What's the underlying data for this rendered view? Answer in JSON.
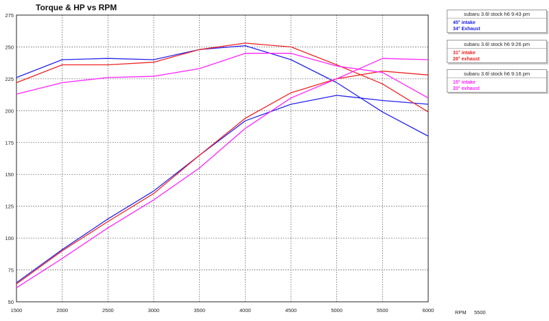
{
  "chart_data": {
    "type": "line",
    "title": "Torque & HP vs RPM",
    "xlabel": "",
    "ylabel": "",
    "x": [
      1500,
      2000,
      2500,
      3000,
      3500,
      4000,
      4500,
      5000,
      5500,
      6000
    ],
    "xlim": [
      1500,
      6000
    ],
    "ylim": [
      50,
      275
    ],
    "xticks": [
      1500,
      2000,
      2500,
      3000,
      3500,
      4000,
      4500,
      5000,
      5500,
      6000
    ],
    "yticks": [
      50,
      75,
      100,
      125,
      150,
      175,
      200,
      225,
      250,
      275
    ],
    "grid": true,
    "grid_style": "dotted",
    "series": [
      {
        "run": 0,
        "measure": "torque",
        "color": "#2222ee",
        "values": [
          226,
          240,
          241,
          240,
          248,
          251,
          240,
          222,
          199,
          180
        ]
      },
      {
        "run": 0,
        "measure": "hp",
        "color": "#2222ee",
        "values": [
          65,
          91,
          115,
          137,
          165,
          192,
          205,
          212,
          208,
          205
        ]
      },
      {
        "run": 1,
        "measure": "torque",
        "color": "#ee2222",
        "values": [
          222,
          236,
          236,
          238,
          248,
          253,
          250,
          236,
          221,
          199
        ]
      },
      {
        "run": 1,
        "measure": "hp",
        "color": "#ee2222",
        "values": [
          64,
          90,
          113,
          135,
          165,
          194,
          214,
          225,
          231,
          228
        ]
      },
      {
        "run": 2,
        "measure": "torque",
        "color": "#ff22ff",
        "values": [
          213,
          222,
          226,
          227,
          233,
          245,
          245,
          235,
          230,
          210
        ]
      },
      {
        "run": 2,
        "measure": "hp",
        "color": "#ff22ff",
        "values": [
          61,
          84,
          108,
          130,
          155,
          186,
          210,
          225,
          241,
          240
        ]
      }
    ],
    "legend": {
      "placement": "right",
      "groups": [
        {
          "title": "subaru 3.6l stock h6 9:43 pm",
          "color": "#2222ee",
          "lines": [
            "45° intake",
            "34° Exhaust"
          ]
        },
        {
          "title": "subaru 3.6l stock h6 9:26 pm",
          "color": "#ee2222",
          "lines": [
            "31° intake",
            "26° exhaust"
          ]
        },
        {
          "title": "subaru 3.6l stock h6 9:16 pm",
          "color": "#ff22ff",
          "lines": [
            "15° intake",
            "20° exhaust"
          ]
        }
      ]
    }
  },
  "footer": {
    "rpm_label": "RPM",
    "rpm_value": "5500"
  }
}
